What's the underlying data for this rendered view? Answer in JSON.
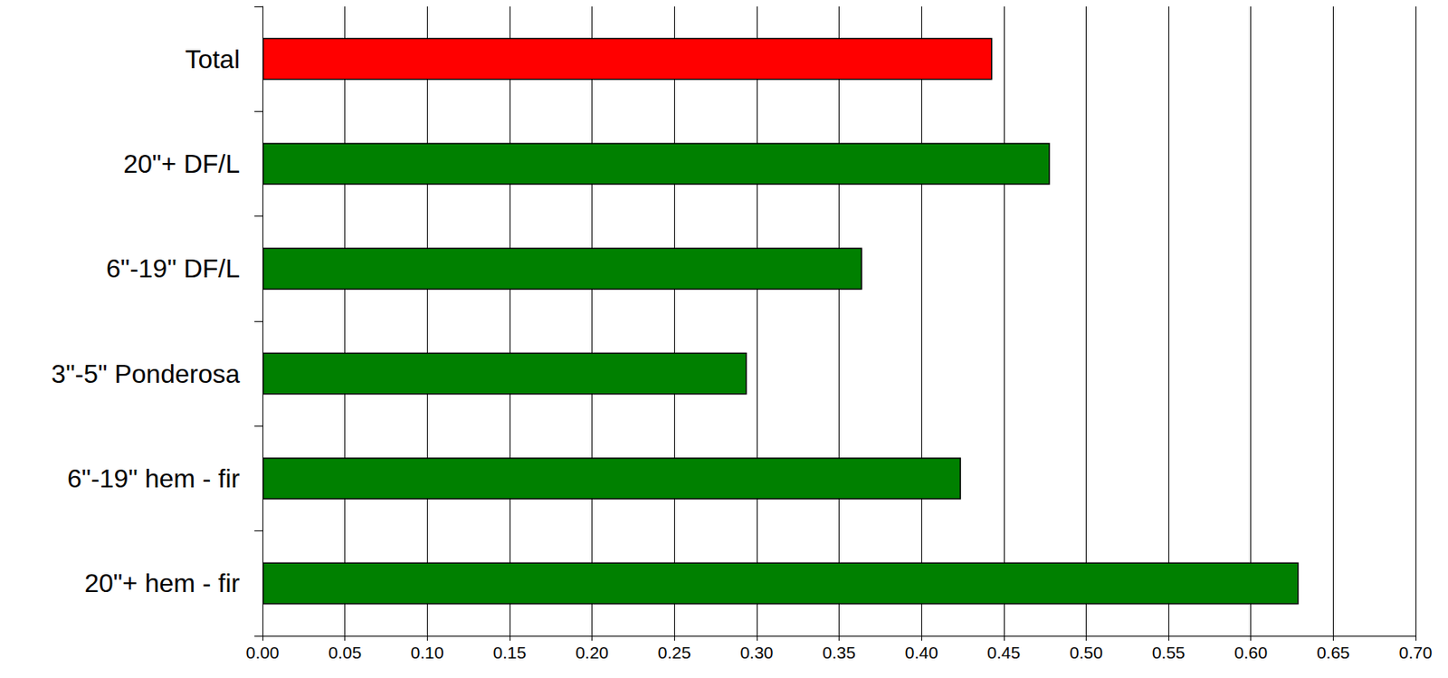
{
  "chart_data": {
    "type": "bar",
    "orientation": "horizontal",
    "categories": [
      "Total",
      "20\"+ DF/L",
      "6\"-19\" DF/L",
      "3\"-5\" Ponderosa",
      "6\"-19\" hem - fir",
      "20\"+ hem - fir"
    ],
    "values": [
      0.443,
      0.478,
      0.364,
      0.294,
      0.424,
      0.629
    ],
    "colors": [
      "#ff0000",
      "#008000",
      "#008000",
      "#008000",
      "#008000",
      "#008000"
    ],
    "xlim": [
      0,
      0.7
    ],
    "xticks": [
      {
        "value": 0,
        "label": "0.00"
      },
      {
        "value": 0.05,
        "label": "0.05"
      },
      {
        "value": 0.1,
        "label": "0.10"
      },
      {
        "value": 0.15,
        "label": "0.15"
      },
      {
        "value": 0.2,
        "label": "0.20"
      },
      {
        "value": 0.25,
        "label": "0.25"
      },
      {
        "value": 0.3,
        "label": "0.30"
      },
      {
        "value": 0.35,
        "label": "0.35"
      },
      {
        "value": 0.4,
        "label": "0.40"
      },
      {
        "value": 0.45,
        "label": "0.45"
      },
      {
        "value": 0.5,
        "label": "0.50"
      },
      {
        "value": 0.55,
        "label": "0.55"
      },
      {
        "value": 0.6,
        "label": "0.60"
      },
      {
        "value": 0.65,
        "label": "0.65"
      },
      {
        "value": 0.7,
        "label": "0.70"
      }
    ],
    "grid": true
  }
}
